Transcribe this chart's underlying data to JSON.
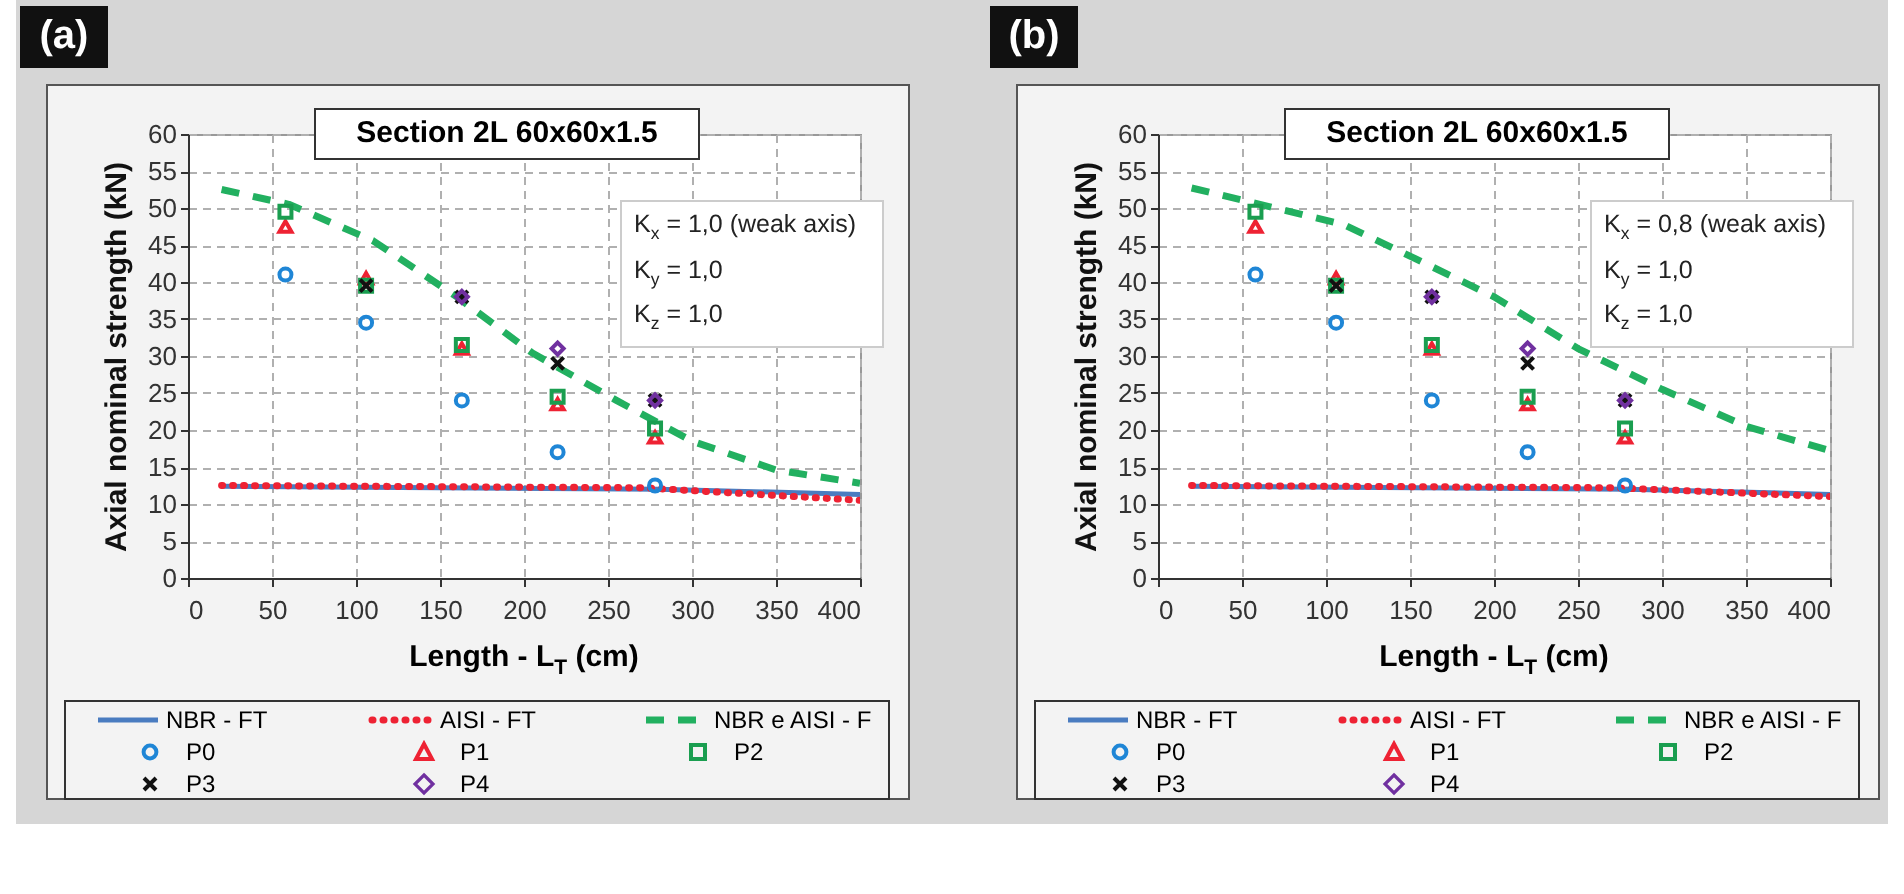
{
  "chart_data": [
    {
      "type": "scatter",
      "title": "Section 2L 60x60x1.5",
      "xlabel": "Length - L$_{T}$ (cm)",
      "ylabel": "Axial nominal strength (kN)",
      "annotations": [
        "(a)",
        "K$_{x}$ = 1,0 (weak axis)",
        "K$_{y}$ = 1,0",
        "K$_{z}$ = 1,0"
      ],
      "x": [
        58,
        106,
        163,
        220,
        278
      ],
      "xlim": [
        0,
        400
      ],
      "xticks": [
        0,
        50,
        100,
        150,
        200,
        250,
        300,
        350,
        400
      ],
      "ylim": [
        0,
        60
      ],
      "yticks": [
        0,
        5,
        10,
        15,
        20,
        25,
        30,
        35,
        40,
        45,
        50,
        55,
        60
      ],
      "grid": true,
      "legend": "bottom",
      "series": [
        {
          "name": "NBR - FT",
          "type": "line",
          "color": "#4a7cc0",
          "line_style": "solid",
          "marker": "none",
          "x": [
            20,
            280,
            400
          ],
          "values": [
            12.4,
            12,
            11.3
          ]
        },
        {
          "name": "AISI - FT",
          "type": "line",
          "color": "#ee2233",
          "line_style": "dotted",
          "marker": "none",
          "x": [
            20,
            270,
            400
          ],
          "values": [
            12.5,
            12.2,
            10.5
          ]
        },
        {
          "name": "NBR e AISI - F",
          "type": "line",
          "color": "#22b060",
          "line_style": "dashed",
          "marker": "none",
          "x": [
            20,
            60,
            110,
            160,
            205,
            255,
            300,
            350,
            400
          ],
          "values": [
            52.5,
            50.5,
            45.6,
            38,
            30.4,
            24,
            18.5,
            14.6,
            12.8
          ]
        },
        {
          "name": "P0",
          "color": "#1f86d6",
          "marker": "circle",
          "values": [
            41,
            34.5,
            24,
            17,
            12.5
          ]
        },
        {
          "name": "P1",
          "color": "#ee2233",
          "marker": "triangle",
          "values": [
            47.5,
            40.5,
            31,
            23.5,
            19
          ]
        },
        {
          "name": "P2",
          "color": "#1a9e50",
          "marker": "square",
          "values": [
            49.5,
            39.5,
            31.5,
            24.5,
            20.2
          ]
        },
        {
          "name": "P3",
          "color": "#111111",
          "marker": "cross",
          "values": [
            null,
            39.5,
            38,
            29,
            24
          ]
        },
        {
          "name": "P4",
          "color": "#7030a0",
          "marker": "diamond",
          "values": [
            null,
            null,
            38,
            31,
            24
          ]
        }
      ]
    },
    {
      "type": "scatter",
      "title": "Section 2L 60x60x1.5",
      "xlabel": "Length - L$_{T}$ (cm)",
      "ylabel": "Axial nominal strength (kN)",
      "annotations": [
        "(b)",
        "K$_{x}$ = 0,8 (weak axis)",
        "K$_{y}$ = 1,0",
        "K$_{z}$ = 1,0"
      ],
      "x": [
        58,
        106,
        163,
        220,
        278
      ],
      "xlim": [
        0,
        400
      ],
      "xticks": [
        0,
        50,
        100,
        150,
        200,
        250,
        300,
        350,
        400
      ],
      "ylim": [
        0,
        60
      ],
      "yticks": [
        0,
        5,
        10,
        15,
        20,
        25,
        30,
        35,
        40,
        45,
        50,
        55,
        60
      ],
      "grid": true,
      "legend": "bottom",
      "series": [
        {
          "name": "NBR - FT",
          "type": "line",
          "color": "#4a7cc0",
          "line_style": "solid",
          "marker": "none",
          "x": [
            20,
            280,
            400
          ],
          "values": [
            12.4,
            12,
            11.3
          ]
        },
        {
          "name": "AISI - FT",
          "type": "line",
          "color": "#ee2233",
          "line_style": "dotted",
          "marker": "none",
          "x": [
            20,
            270,
            400
          ],
          "values": [
            12.5,
            12.2,
            11
          ]
        },
        {
          "name": "NBR e AISI - F",
          "type": "line",
          "color": "#22b060",
          "line_style": "dashed",
          "marker": "none",
          "x": [
            20,
            55,
            110,
            150,
            200,
            250,
            300,
            350,
            400
          ],
          "values": [
            52.7,
            50.8,
            47.8,
            43.5,
            38,
            31,
            25.5,
            20.5,
            17.2
          ]
        },
        {
          "name": "P0",
          "color": "#1f86d6",
          "marker": "circle",
          "values": [
            41,
            34.5,
            24,
            17,
            12.5
          ]
        },
        {
          "name": "P1",
          "color": "#ee2233",
          "marker": "triangle",
          "values": [
            47.5,
            40.5,
            31,
            23.5,
            19
          ]
        },
        {
          "name": "P2",
          "color": "#1a9e50",
          "marker": "square",
          "values": [
            49.5,
            39.5,
            31.5,
            24.5,
            20.2
          ]
        },
        {
          "name": "P3",
          "color": "#111111",
          "marker": "cross",
          "values": [
            null,
            39.5,
            38,
            29,
            24
          ]
        },
        {
          "name": "P4",
          "color": "#7030a0",
          "marker": "diamond",
          "values": [
            null,
            null,
            38,
            31,
            24
          ]
        }
      ]
    }
  ]
}
